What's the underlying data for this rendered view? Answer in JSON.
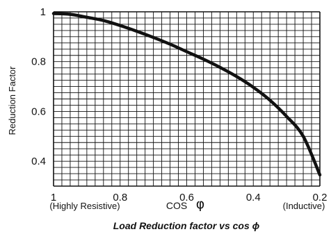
{
  "chart_data": {
    "type": "line",
    "title": "Load Reduction factor vs cos ϕ",
    "xlabel": "COS",
    "xlabel_symbol": "φ",
    "ylabel": "Reduction Factor",
    "x_direction": "descending",
    "xlim": [
      1.0,
      0.2
    ],
    "ylim": [
      0.3,
      1.0
    ],
    "grid": true,
    "x_ticks": [
      {
        "value": 1.0,
        "label": "1"
      },
      {
        "value": 0.8,
        "label": "0.8"
      },
      {
        "value": 0.6,
        "label": "0.6"
      },
      {
        "value": 0.4,
        "label": "0.4"
      },
      {
        "value": 0.2,
        "label": "0.2"
      }
    ],
    "y_ticks": [
      {
        "value": 1.0,
        "label": "1"
      },
      {
        "value": 0.8,
        "label": "0.8"
      },
      {
        "value": 0.6,
        "label": "0.6"
      },
      {
        "value": 0.4,
        "label": "0.4"
      }
    ],
    "annotations": {
      "left": "(Highly Resistive)",
      "right": "(Inductive)"
    },
    "series": [
      {
        "color": "#111111",
        "x": [
          1.0,
          0.95,
          0.9,
          0.85,
          0.8,
          0.75,
          0.7,
          0.65,
          0.6,
          0.55,
          0.5,
          0.45,
          0.4,
          0.35,
          0.3,
          0.25,
          0.2
        ],
        "y": [
          0.993,
          0.99,
          0.978,
          0.965,
          0.945,
          0.922,
          0.897,
          0.87,
          0.84,
          0.81,
          0.777,
          0.74,
          0.697,
          0.645,
          0.58,
          0.5,
          0.345
        ]
      }
    ]
  }
}
